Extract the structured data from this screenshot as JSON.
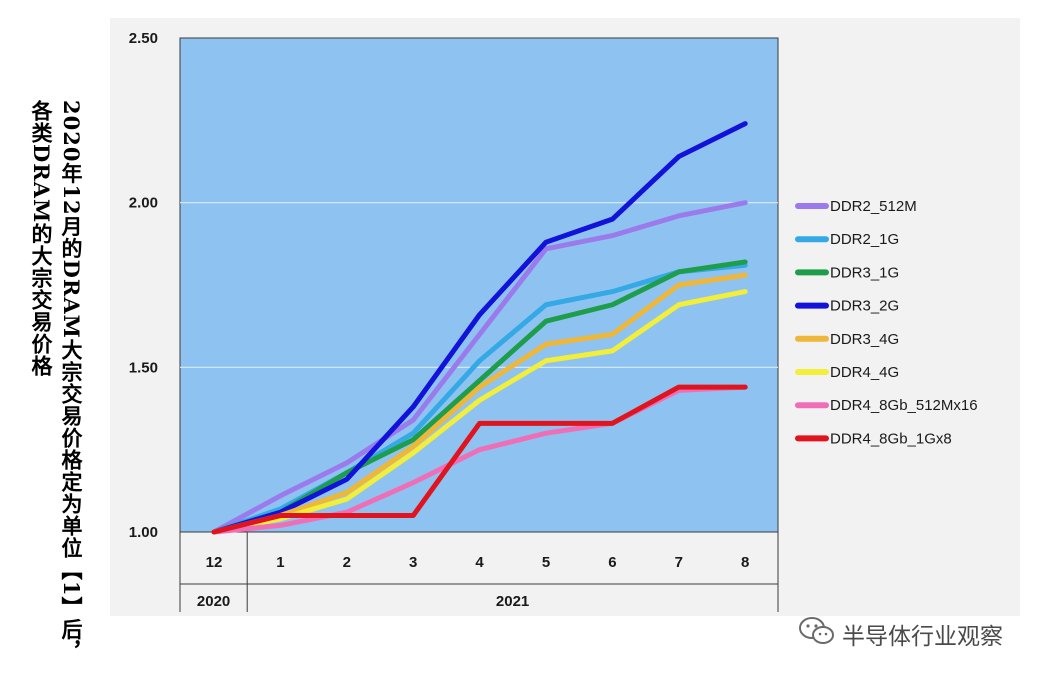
{
  "caption": {
    "column1": "2020年12月的DRAM大宗交易价格定为单位【1】后，",
    "column2": "各类DRAM的大宗交易价格"
  },
  "watermark": {
    "text": "半导体行业观察",
    "icon": "wechat-icon"
  },
  "colors": {
    "plot_background": "#8EC3F1",
    "frame_background": "#F2F2F2"
  },
  "chart_data": {
    "type": "line",
    "x": [
      "12",
      "1",
      "2",
      "3",
      "4",
      "5",
      "6",
      "7",
      "8"
    ],
    "year_groups": [
      {
        "label": "2020",
        "categories": [
          "12"
        ]
      },
      {
        "label": "2021",
        "categories": [
          "1",
          "2",
          "3",
          "4",
          "5",
          "6",
          "7",
          "8"
        ]
      }
    ],
    "y_ticks": [
      "1.00",
      "1.50",
      "2.00",
      "2.50"
    ],
    "ylim": [
      1.0,
      2.5
    ],
    "grid": "horizontal",
    "legend_position": "right",
    "series": [
      {
        "name": "DDR2_512M",
        "color": "#9B7BEB",
        "values": [
          1.0,
          1.11,
          1.21,
          1.34,
          1.6,
          1.86,
          1.9,
          1.96,
          2.0
        ]
      },
      {
        "name": "DDR2_1G",
        "color": "#35A9E5",
        "values": [
          1.0,
          1.07,
          1.18,
          1.3,
          1.52,
          1.69,
          1.73,
          1.79,
          1.81
        ]
      },
      {
        "name": "DDR3_1G",
        "color": "#1E9E4A",
        "values": [
          1.0,
          1.06,
          1.18,
          1.28,
          1.46,
          1.64,
          1.69,
          1.79,
          1.82
        ]
      },
      {
        "name": "DDR3_2G",
        "color": "#1212D8",
        "values": [
          1.0,
          1.06,
          1.16,
          1.38,
          1.66,
          1.88,
          1.95,
          2.14,
          2.24
        ]
      },
      {
        "name": "DDR3_4G",
        "color": "#EFB739",
        "values": [
          1.0,
          1.05,
          1.12,
          1.26,
          1.44,
          1.57,
          1.6,
          1.75,
          1.78
        ]
      },
      {
        "name": "DDR4_4G",
        "color": "#F2EE3A",
        "values": [
          1.0,
          1.04,
          1.1,
          1.24,
          1.4,
          1.52,
          1.55,
          1.69,
          1.73
        ]
      },
      {
        "name": "DDR4_8Gb_512Mx16",
        "color": "#EF6FB7",
        "values": [
          1.0,
          1.02,
          1.06,
          1.15,
          1.25,
          1.3,
          1.33,
          1.43,
          1.44
        ]
      },
      {
        "name": "DDR4_8Gb_1Gx8",
        "color": "#E0141E",
        "values": [
          1.0,
          1.05,
          1.05,
          1.05,
          1.33,
          1.33,
          1.33,
          1.44,
          1.44
        ]
      }
    ]
  }
}
